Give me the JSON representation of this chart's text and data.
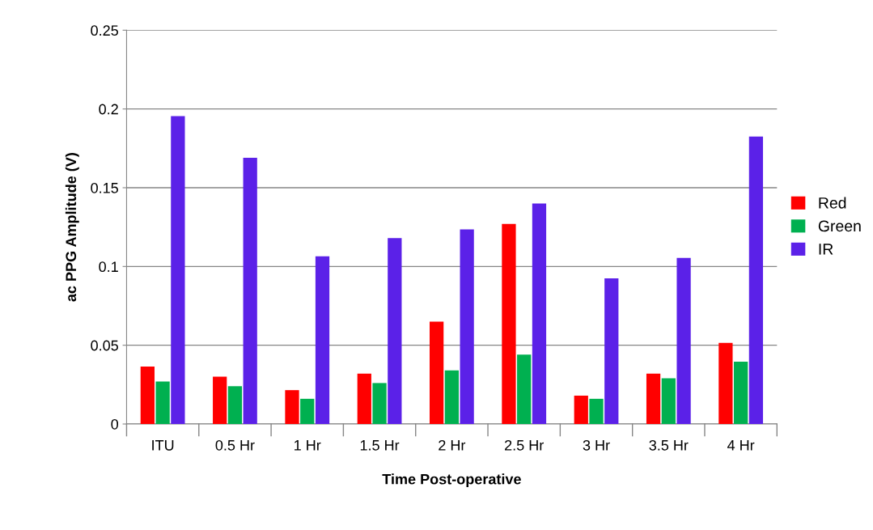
{
  "chart_data": {
    "type": "bar",
    "xlabel": "Time Post-operative",
    "ylabel": "ac PPG Amplitude (V)",
    "categories": [
      "ITU",
      "0.5 Hr",
      "1 Hr",
      "1.5 Hr",
      "2 Hr",
      "2.5 Hr",
      "3 Hr",
      "3.5 Hr",
      "4 Hr"
    ],
    "series": [
      {
        "name": "Red",
        "color": "#ff0000",
        "values": [
          0.0365,
          0.03,
          0.0215,
          0.032,
          0.065,
          0.127,
          0.018,
          0.032,
          0.0515
        ]
      },
      {
        "name": "Green",
        "color": "#00b050",
        "values": [
          0.027,
          0.024,
          0.016,
          0.026,
          0.034,
          0.044,
          0.016,
          0.029,
          0.0395
        ]
      },
      {
        "name": "IR",
        "color": "#5b21e8",
        "values": [
          0.1955,
          0.169,
          0.1065,
          0.118,
          0.1235,
          0.14,
          0.0925,
          0.1055,
          0.1825
        ]
      }
    ],
    "ylim": [
      0,
      0.25
    ],
    "yticks": [
      {
        "value": 0,
        "label": "0"
      },
      0.05,
      0.1,
      0.15,
      0.2,
      0.25
    ],
    "grid": "y",
    "legend": "right"
  }
}
